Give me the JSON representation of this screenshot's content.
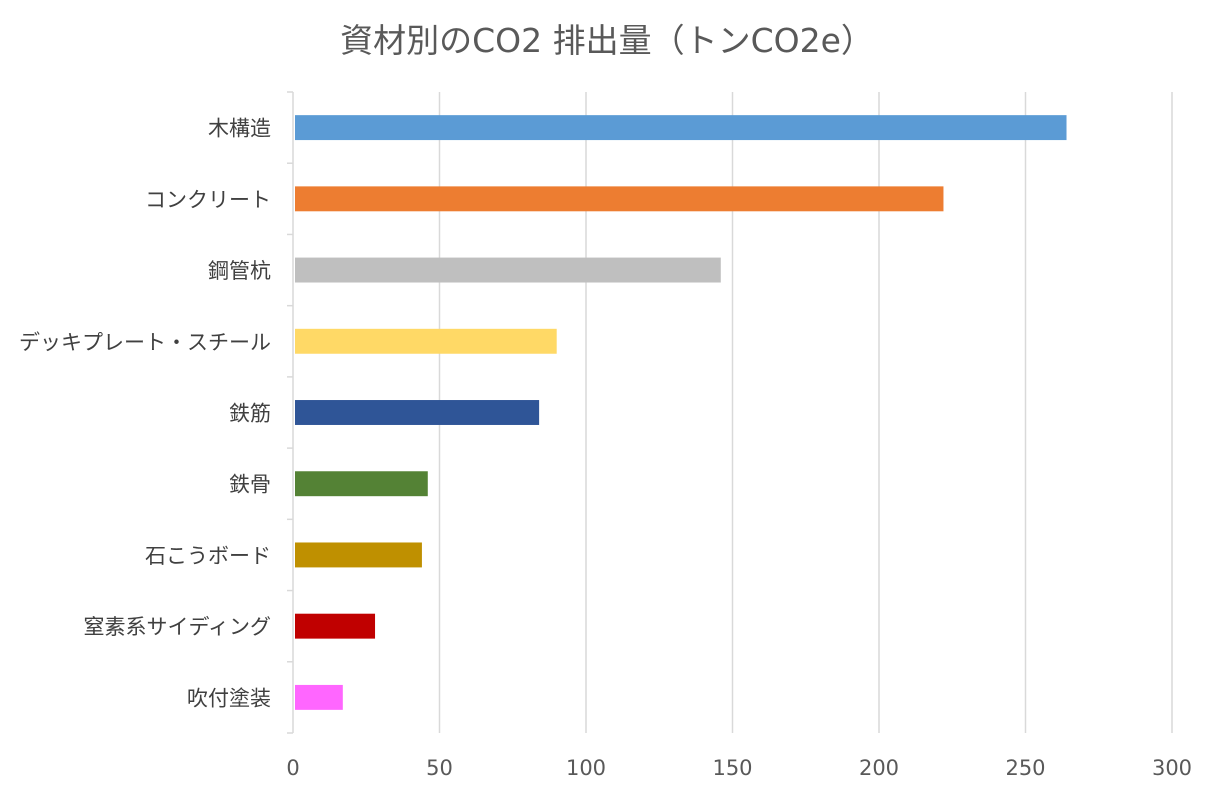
{
  "chart_data": {
    "type": "bar",
    "orientation": "horizontal",
    "title": "資材別のCO2 排出量（トンCO2e）",
    "xlabel": "",
    "ylabel": "",
    "categories": [
      "木構造",
      "コンクリート",
      "鋼管杭",
      "デッキプレート・スチール",
      "鉄筋",
      "鉄骨",
      "石こうボード",
      "窒素系サイディング",
      "吹付塗装"
    ],
    "values": [
      264,
      222,
      146,
      90,
      84,
      46,
      44,
      28,
      17
    ],
    "colors": [
      "#5b9bd5",
      "#ed7d31",
      "#bfbfbf",
      "#ffd966",
      "#2f5597",
      "#548235",
      "#bf9000",
      "#c00000",
      "#ff66ff"
    ],
    "xlim": [
      0,
      300
    ],
    "xticks": [
      0,
      50,
      100,
      150,
      200,
      250,
      300
    ],
    "grid": true,
    "legend": "none"
  }
}
